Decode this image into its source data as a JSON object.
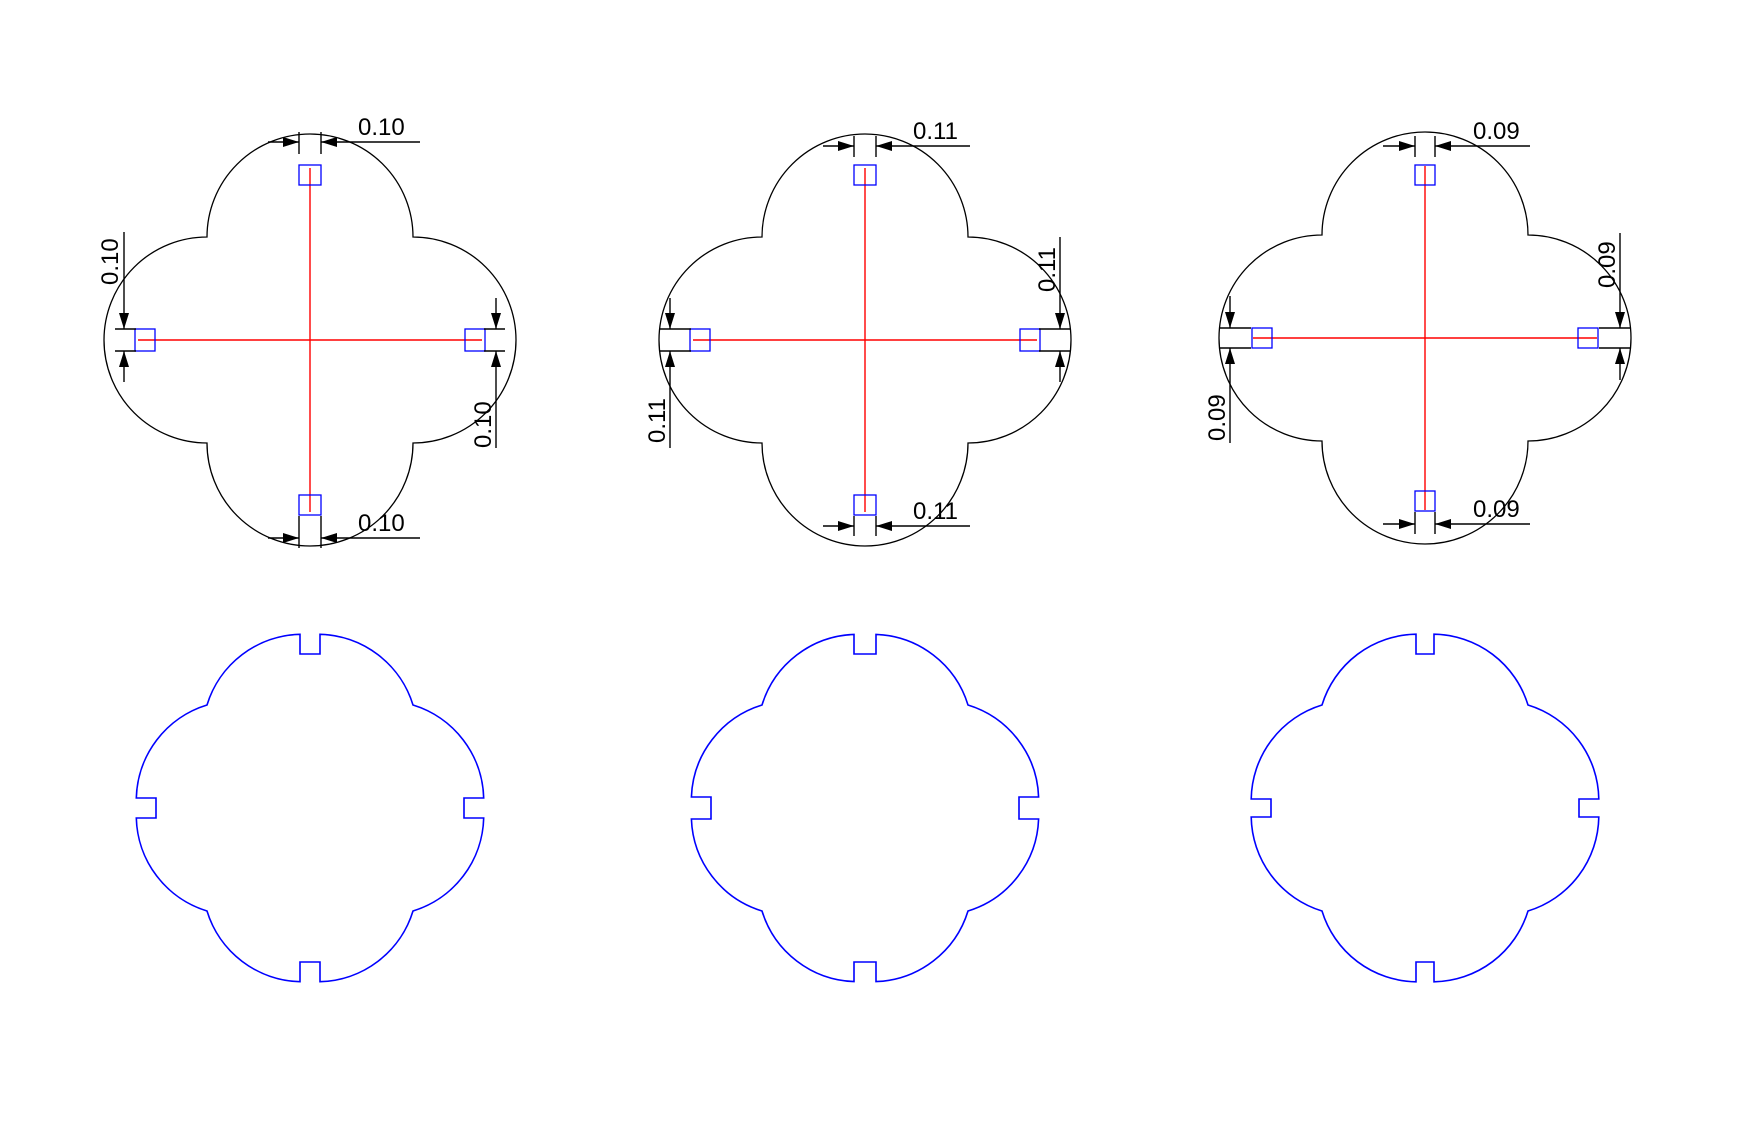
{
  "colors": {
    "background": "#ffffff",
    "outline": "#000000",
    "centerline": "#ff0000",
    "notch": "#0000ff",
    "cut_profile": "#0000ff",
    "dimension": "#000000"
  },
  "top_row": [
    {
      "top": "0.10",
      "left": "0.10",
      "right": "0.10",
      "bottom": "0.10"
    },
    {
      "top": "0.11",
      "left": "0.11",
      "right": "0.11",
      "bottom": "0.11"
    },
    {
      "top": "0.09",
      "left": "0.09",
      "right": "0.09",
      "bottom": "0.09"
    }
  ]
}
